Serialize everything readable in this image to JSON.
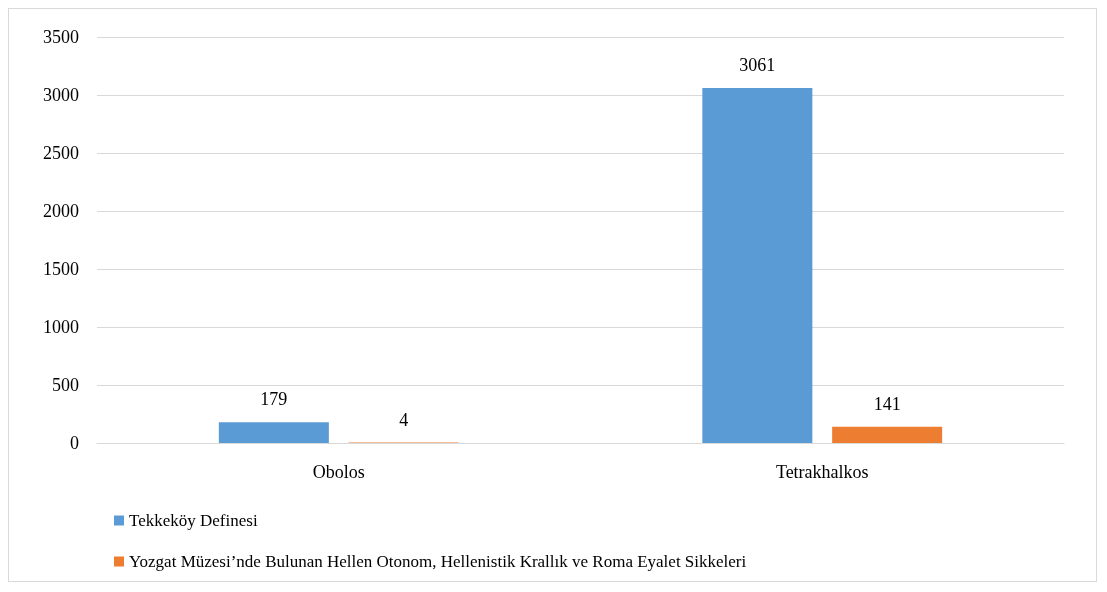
{
  "chart_data": {
    "type": "bar",
    "categories": [
      "Obolos",
      "Tetrakhalkos"
    ],
    "series": [
      {
        "name": "Tekkeköy Definesi",
        "color": "#5b9bd5",
        "values": [
          179,
          3061
        ]
      },
      {
        "name": "Yozgat Müzesi’nde Bulunan Hellen Otonom, Hellenistik Krallık ve Roma Eyalet Sikkeleri",
        "color": "#ed7d31",
        "values": [
          4,
          141
        ]
      }
    ],
    "ylim": [
      0,
      3500
    ],
    "yticks": [
      0,
      500,
      1000,
      1500,
      2000,
      2500,
      3000,
      3500
    ],
    "grid": "y",
    "legend": "bottom",
    "data_labels": true
  }
}
